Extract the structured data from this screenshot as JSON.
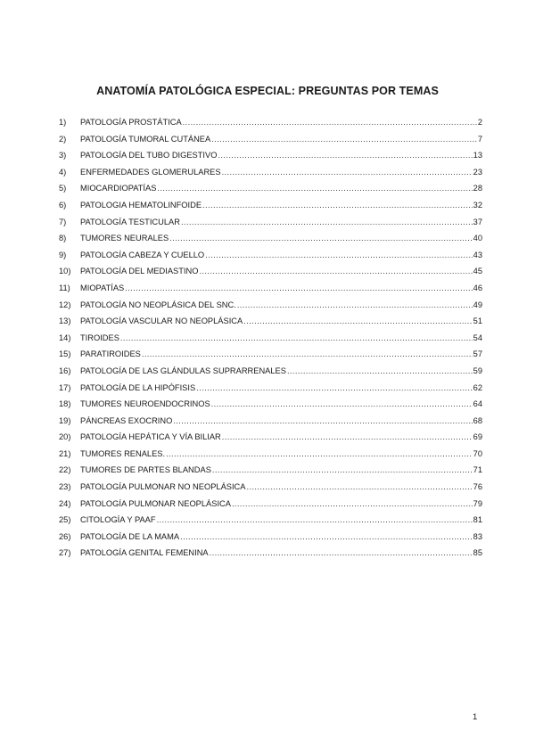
{
  "title": "ANATOMÍA PATOLÓGICA ESPECIAL: PREGUNTAS POR TEMAS",
  "toc": [
    {
      "num": "1)",
      "label": "PATOLOGÍA PROSTÁTICA",
      "page": "2"
    },
    {
      "num": "2)",
      "label": "PATOLOGÍA TUMORAL CUTÁNEA",
      "page": "7"
    },
    {
      "num": "3)",
      "label": "PATOLOGÍA DEL TUBO DIGESTIVO",
      "page": "13"
    },
    {
      "num": "4)",
      "label": "ENFERMEDADES GLOMERULARES",
      "page": "23"
    },
    {
      "num": "5)",
      "label": "MIOCARDIOPATÍAS",
      "page": "28"
    },
    {
      "num": "6)",
      "label": "PATOLOGIA HEMATOLINFOIDE",
      "page": "32"
    },
    {
      "num": "7)",
      "label": "PATOLOGÍA TESTICULAR",
      "page": "37"
    },
    {
      "num": "8)",
      "label": "TUMORES NEURALES",
      "page": "40"
    },
    {
      "num": "9)",
      "label": "PATOLOGÍA CABEZA Y CUELLO",
      "page": "43"
    },
    {
      "num": "10)",
      "label": "PATOLOGÍA DEL MEDIASTINO",
      "page": "45"
    },
    {
      "num": "11)",
      "label": "MIOPATÍAS",
      "page": "46"
    },
    {
      "num": "12)",
      "label": "PATOLOGÍA NO NEOPLÁSICA DEL SNC.",
      "page": "49"
    },
    {
      "num": "13)",
      "label": "PATOLOGÍA VASCULAR NO NEOPLÁSICA",
      "page": "51"
    },
    {
      "num": "14)",
      "label": "TIROIDES",
      "page": "54"
    },
    {
      "num": "15)",
      "label": "PARATIROIDES",
      "page": "57"
    },
    {
      "num": "16)",
      "label": "PATOLOGÍA DE LAS GLÁNDULAS SUPRARRENALES",
      "page": "59"
    },
    {
      "num": "17)",
      "label": "PATOLOGÍA DE LA HIPÓFISIS",
      "page": "62"
    },
    {
      "num": "18)",
      "label": "TUMORES NEUROENDOCRINOS",
      "page": "64"
    },
    {
      "num": "19)",
      "label": "PÁNCREAS EXOCRINO",
      "page": "68"
    },
    {
      "num": "20)",
      "label": "PATOLOGÍA HEPÁTICA Y VÍA BILIAR",
      "page": "69"
    },
    {
      "num": "21)",
      "label": "TUMORES RENALES.",
      "page": "70"
    },
    {
      "num": "22)",
      "label": "TUMORES DE PARTES BLANDAS",
      "page": "71"
    },
    {
      "num": "23)",
      "label": "PATOLOGÍA PULMONAR NO NEOPLÁSICA",
      "page": "76"
    },
    {
      "num": "24)",
      "label": "PATOLOGÍA PULMONAR NEOPLÁSICA",
      "page": "79"
    },
    {
      "num": "25)",
      "label": "CITOLOGÍA Y PAAF",
      "page": "81"
    },
    {
      "num": "26)",
      "label": "PATOLOGÍA DE LA MAMA",
      "page": "83"
    },
    {
      "num": "27)",
      "label": "PATOLOGÍA GENITAL FEMENINA",
      "page": "85"
    }
  ],
  "page_number": "1"
}
